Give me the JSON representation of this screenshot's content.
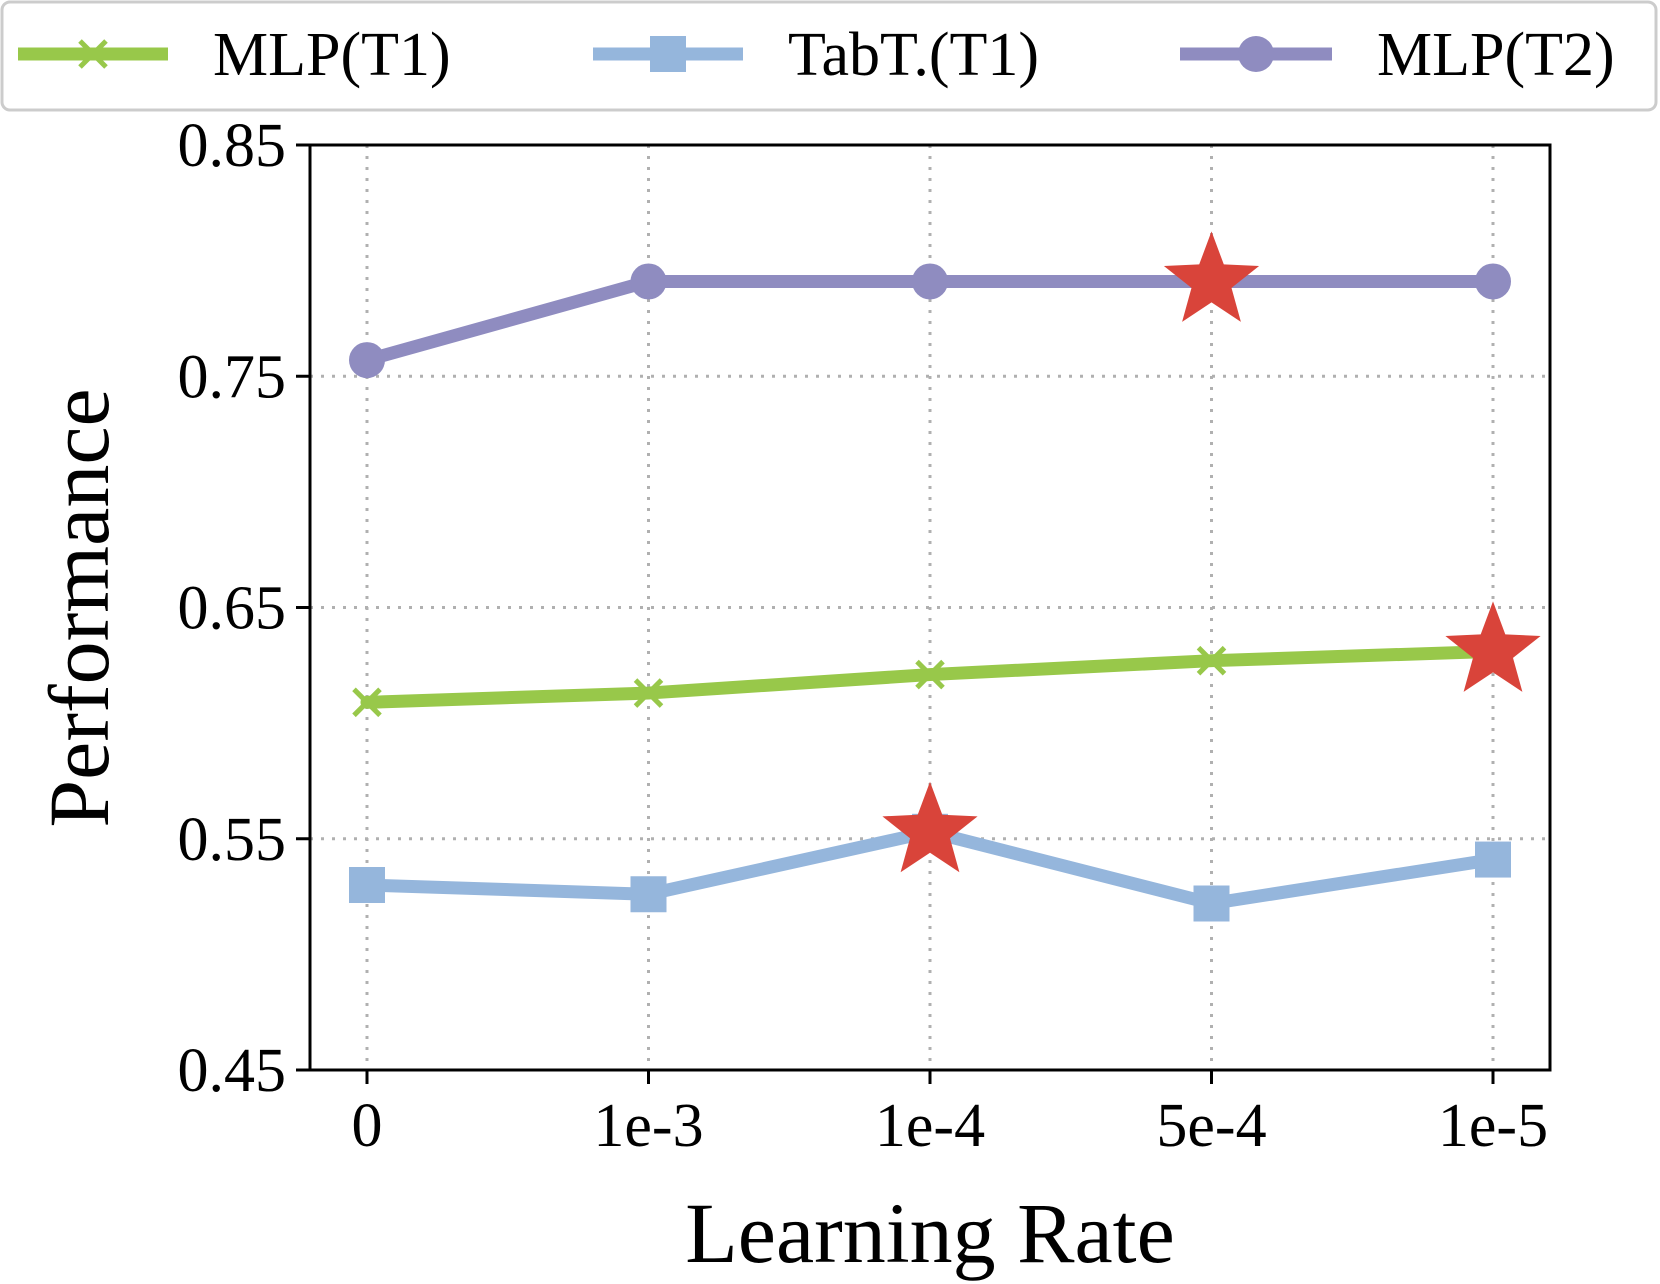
{
  "chart_data": {
    "type": "line",
    "title": "",
    "xlabel": "Learning Rate",
    "ylabel": "Performance",
    "categories": [
      "0",
      "1e-3",
      "1e-4",
      "5e-4",
      "1e-5"
    ],
    "ylim": [
      0.45,
      0.85
    ],
    "yticks": [
      "0.45",
      "0.55",
      "0.65",
      "0.75",
      "0.85"
    ],
    "grid": true,
    "legend_position": "top",
    "series": [
      {
        "name": "MLP(T1)",
        "values": [
          0.609,
          0.613,
          0.621,
          0.627,
          0.631
        ],
        "color": "#98c84a",
        "marker": "x",
        "best_index": 4
      },
      {
        "name": "TabT.(T1)",
        "values": [
          0.53,
          0.526,
          0.553,
          0.522,
          0.541
        ],
        "color": "#95b6dc",
        "marker": "square",
        "best_index": 2
      },
      {
        "name": "MLP(T2)",
        "values": [
          0.757,
          0.791,
          0.791,
          0.791,
          0.791
        ],
        "color": "#8f8cc0",
        "marker": "circle",
        "best_index": 3
      }
    ],
    "best_marker": {
      "shape": "star",
      "color": "#d9443a"
    }
  }
}
